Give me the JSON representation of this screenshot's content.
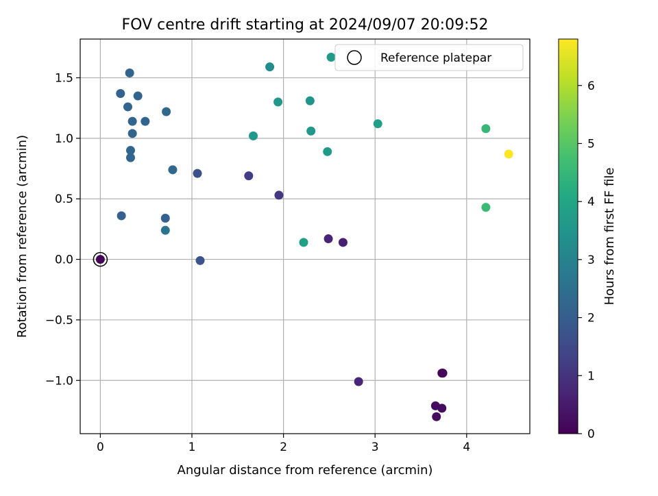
{
  "chart_data": {
    "type": "scatter",
    "title": "FOV centre drift starting at 2024/09/07 20:09:52",
    "xlabel": "Angular distance from reference (arcmin)",
    "ylabel": "Rotation from reference (arcmin)",
    "xlim": [
      -0.22,
      4.69
    ],
    "ylim": [
      -1.44,
      1.82
    ],
    "xticks": [
      0,
      1,
      2,
      3,
      4
    ],
    "yticks": [
      -1.0,
      -0.5,
      0.0,
      0.5,
      1.0,
      1.5
    ],
    "xtick_labels": [
      "0",
      "1",
      "2",
      "3",
      "4"
    ],
    "ytick_labels": [
      "−1.0",
      "−0.5",
      "0.0",
      "0.5",
      "1.0",
      "1.5"
    ],
    "grid": true,
    "colormap": "viridis",
    "colorbar": {
      "label": "Hours from first FF file",
      "range": [
        0,
        6.8
      ],
      "ticks": [
        0,
        1,
        2,
        3,
        4,
        5,
        6
      ],
      "tick_labels": [
        "0",
        "1",
        "2",
        "3",
        "4",
        "5",
        "6"
      ]
    },
    "legend": {
      "position": "top-right",
      "entries": [
        "Reference platepar"
      ]
    },
    "reference_point": {
      "x": 0.0,
      "y": 0.0
    },
    "points": [
      {
        "x": 0.0,
        "y": 0.0,
        "hours": 0.1
      },
      {
        "x": 0.22,
        "y": 1.37,
        "hours": 2.1
      },
      {
        "x": 0.32,
        "y": 1.54,
        "hours": 2.2
      },
      {
        "x": 0.3,
        "y": 1.26,
        "hours": 2.2
      },
      {
        "x": 0.41,
        "y": 1.35,
        "hours": 2.2
      },
      {
        "x": 0.35,
        "y": 1.14,
        "hours": 2.2
      },
      {
        "x": 0.49,
        "y": 1.14,
        "hours": 2.2
      },
      {
        "x": 0.35,
        "y": 1.04,
        "hours": 2.2
      },
      {
        "x": 0.72,
        "y": 1.22,
        "hours": 2.3
      },
      {
        "x": 0.33,
        "y": 0.9,
        "hours": 2.2
      },
      {
        "x": 0.33,
        "y": 0.84,
        "hours": 2.2
      },
      {
        "x": 0.79,
        "y": 0.74,
        "hours": 2.3
      },
      {
        "x": 0.23,
        "y": 0.36,
        "hours": 2.1
      },
      {
        "x": 0.71,
        "y": 0.34,
        "hours": 2.1
      },
      {
        "x": 0.71,
        "y": 0.24,
        "hours": 2.6
      },
      {
        "x": 1.06,
        "y": 0.71,
        "hours": 1.7
      },
      {
        "x": 1.09,
        "y": -0.01,
        "hours": 1.8
      },
      {
        "x": 1.62,
        "y": 0.69,
        "hours": 1.2
      },
      {
        "x": 1.95,
        "y": 0.53,
        "hours": 1.1
      },
      {
        "x": 1.67,
        "y": 1.02,
        "hours": 3.6
      },
      {
        "x": 1.85,
        "y": 1.59,
        "hours": 3.3
      },
      {
        "x": 1.94,
        "y": 1.3,
        "hours": 3.6
      },
      {
        "x": 2.52,
        "y": 1.67,
        "hours": 3.7
      },
      {
        "x": 2.29,
        "y": 1.31,
        "hours": 3.5
      },
      {
        "x": 2.3,
        "y": 1.06,
        "hours": 3.6
      },
      {
        "x": 2.48,
        "y": 0.89,
        "hours": 3.7
      },
      {
        "x": 3.03,
        "y": 1.12,
        "hours": 3.8
      },
      {
        "x": 2.22,
        "y": 0.14,
        "hours": 3.8
      },
      {
        "x": 2.49,
        "y": 0.17,
        "hours": 0.7
      },
      {
        "x": 2.65,
        "y": 0.14,
        "hours": 0.6
      },
      {
        "x": 2.82,
        "y": -1.01,
        "hours": 0.7
      },
      {
        "x": 3.73,
        "y": -0.94,
        "hours": 0.05
      },
      {
        "x": 3.74,
        "y": -0.94,
        "hours": 0.1
      },
      {
        "x": 3.66,
        "y": -1.21,
        "hours": 0.2
      },
      {
        "x": 3.73,
        "y": -1.23,
        "hours": 0.2
      },
      {
        "x": 3.67,
        "y": -1.3,
        "hours": 0.2
      },
      {
        "x": 4.21,
        "y": 1.08,
        "hours": 4.5
      },
      {
        "x": 4.21,
        "y": 0.43,
        "hours": 4.6
      },
      {
        "x": 4.46,
        "y": 0.87,
        "hours": 6.8
      }
    ]
  }
}
